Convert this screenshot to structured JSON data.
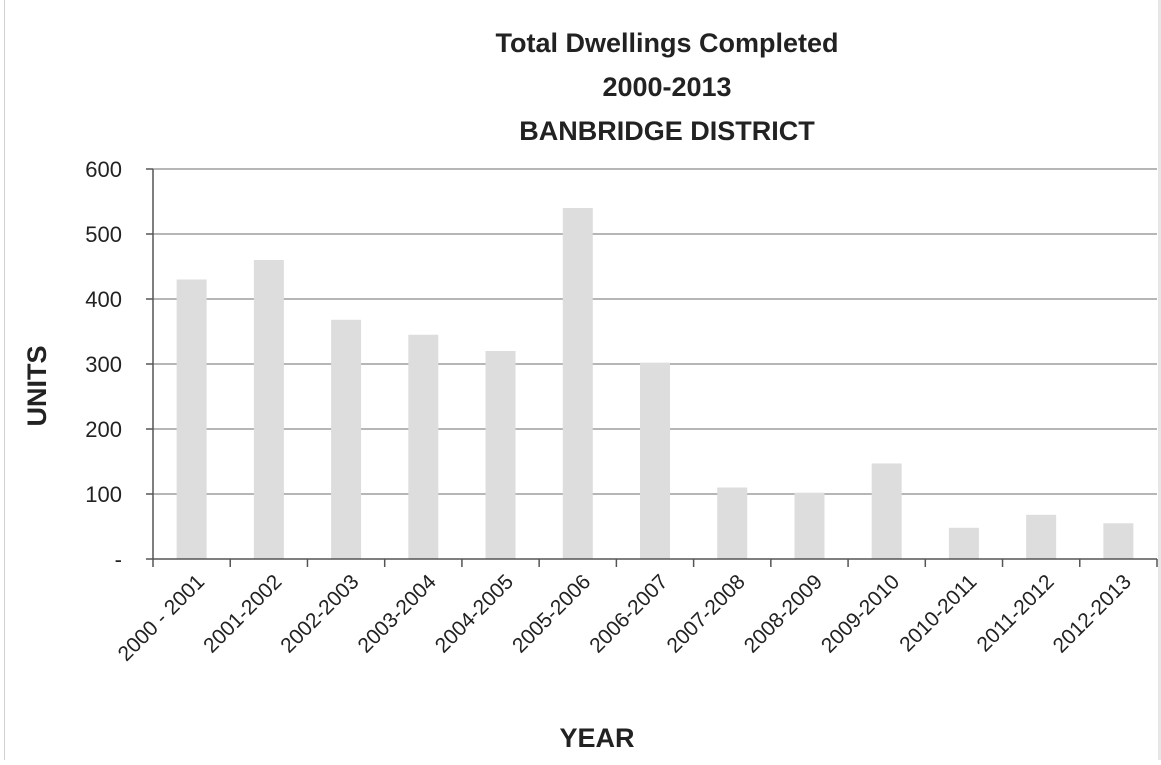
{
  "chart_data": {
    "type": "bar",
    "title": [
      "Total Dwellings Completed",
      "2000-2013",
      "BANBRIDGE DISTRICT"
    ],
    "xlabel": "YEAR",
    "ylabel": "UNITS",
    "ylim": [
      0,
      600
    ],
    "y_ticks": [
      {
        "value": 0,
        "label": "-"
      },
      {
        "value": 100,
        "label": "100"
      },
      {
        "value": 200,
        "label": "200"
      },
      {
        "value": 300,
        "label": "300"
      },
      {
        "value": 400,
        "label": "400"
      },
      {
        "value": 500,
        "label": "500"
      },
      {
        "value": 600,
        "label": "600"
      }
    ],
    "grid": true,
    "legend": "none",
    "bar_color": "#dddddd",
    "categories": [
      "2000 - 2001",
      "2001-2002",
      "2002-2003",
      "2003-2004",
      "2004-2005",
      "2005-2006",
      "2006-2007",
      "2007-2008",
      "2008-2009",
      "2009-2010",
      "2010-2011",
      "2011-2012",
      "2012-2013"
    ],
    "values": [
      430,
      460,
      368,
      345,
      320,
      540,
      302,
      110,
      102,
      147,
      48,
      68,
      55
    ]
  }
}
